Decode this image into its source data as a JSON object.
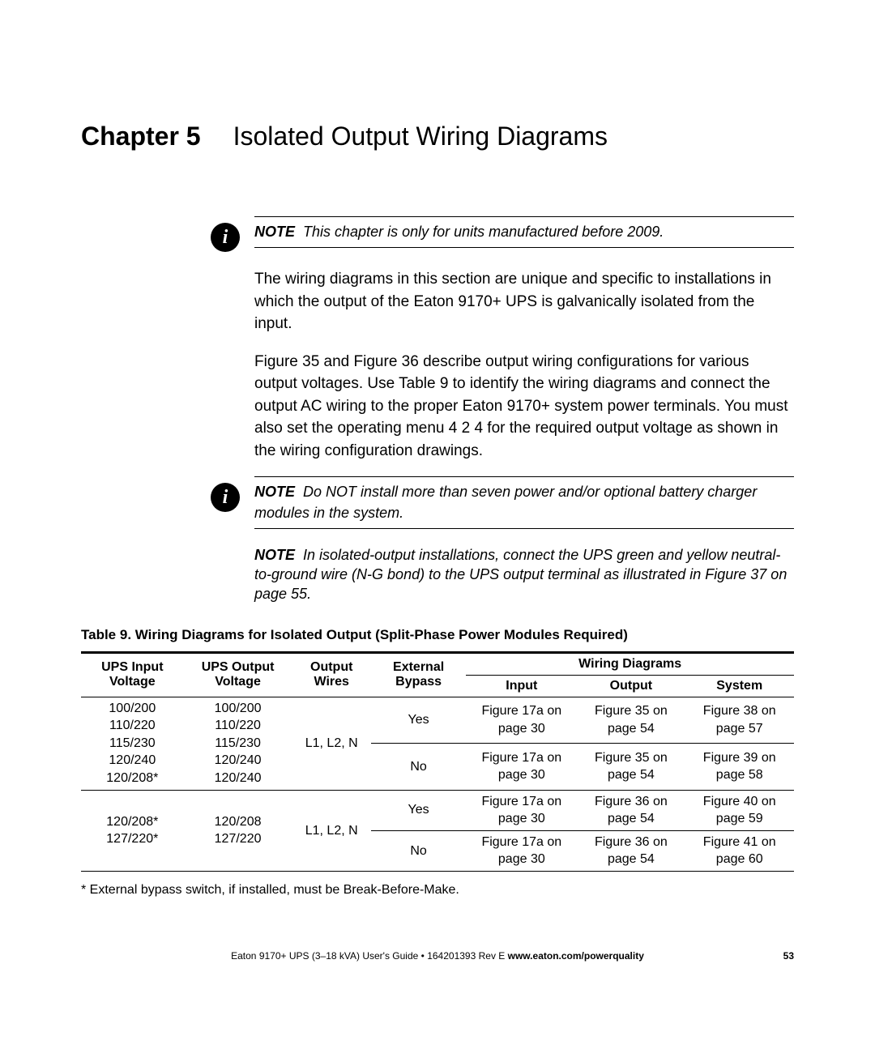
{
  "chapter": {
    "label": "Chapter 5",
    "title": "Isolated Output Wiring Diagrams"
  },
  "notes": {
    "note1_label": "NOTE",
    "note1_text": "This chapter is only for units manufactured before 2009.",
    "note2_label": "NOTE",
    "note2_text": "Do NOT install more than seven power and/or optional battery charger modules in the system.",
    "note3_label": "NOTE",
    "note3_text": "In isolated-output installations, connect the UPS green and yellow neutral-to-ground wire (N-G bond) to the UPS output terminal as illustrated in Figure 37 on page 55."
  },
  "paragraphs": {
    "p1": "The wiring diagrams in this section are unique and specific to installations in which the output of the Eaton 9170+ UPS is galvanically isolated from the input.",
    "p2": "Figure 35 and Figure 36 describe output wiring configurations for various output voltages. Use Table 9 to identify the wiring diagrams and connect the output AC wiring to the proper Eaton 9170+ system power terminals. You must also set the operating menu 4 2 4 for the required output voltage as shown in the wiring configuration drawings."
  },
  "table": {
    "caption": "Table 9. Wiring Diagrams for Isolated Output (Split-Phase Power Modules Required)",
    "headers": {
      "ups_input": "UPS Input Voltage",
      "ups_output": "UPS Output Voltage",
      "output_wires": "Output Wires",
      "ext_bypass": "External Bypass",
      "wiring_diagrams": "Wiring Diagrams",
      "input": "Input",
      "output": "Output",
      "system": "System"
    },
    "group1": {
      "ups_input": "100/200\n110/220\n115/230\n120/240\n120/208*",
      "ups_output": "100/200\n110/220\n115/230\n120/240\n120/240",
      "output_wires": "L1, L2, N",
      "rows": [
        {
          "bypass": "Yes",
          "input": "Figure 17a on page 30",
          "output": "Figure 35 on page 54",
          "system": "Figure 38 on page 57"
        },
        {
          "bypass": "No",
          "input": "Figure 17a on page 30",
          "output": "Figure 35 on page 54",
          "system": "Figure 39 on page 58"
        }
      ]
    },
    "group2": {
      "ups_input": "120/208*\n127/220*",
      "ups_output": "120/208\n127/220",
      "output_wires": "L1, L2, N",
      "rows": [
        {
          "bypass": "Yes",
          "input": "Figure 17a on page 30",
          "output": "Figure 36 on page 54",
          "system": "Figure 40 on page 59"
        },
        {
          "bypass": "No",
          "input": "Figure 17a on page 30",
          "output": "Figure 36 on page 54",
          "system": "Figure 41 on page 60"
        }
      ]
    },
    "footnote": "* External bypass switch, if installed, must be Break-Before-Make."
  },
  "footer": {
    "text_left": "Eaton 9170+ UPS (3–18 kVA) User's Guide",
    "sep": " • ",
    "text_mid": "164201393 Rev E",
    "url": "www.eaton.com/powerquality",
    "page": "53"
  },
  "colors": {
    "text": "#000000",
    "background": "#ffffff",
    "rule": "#000000"
  }
}
